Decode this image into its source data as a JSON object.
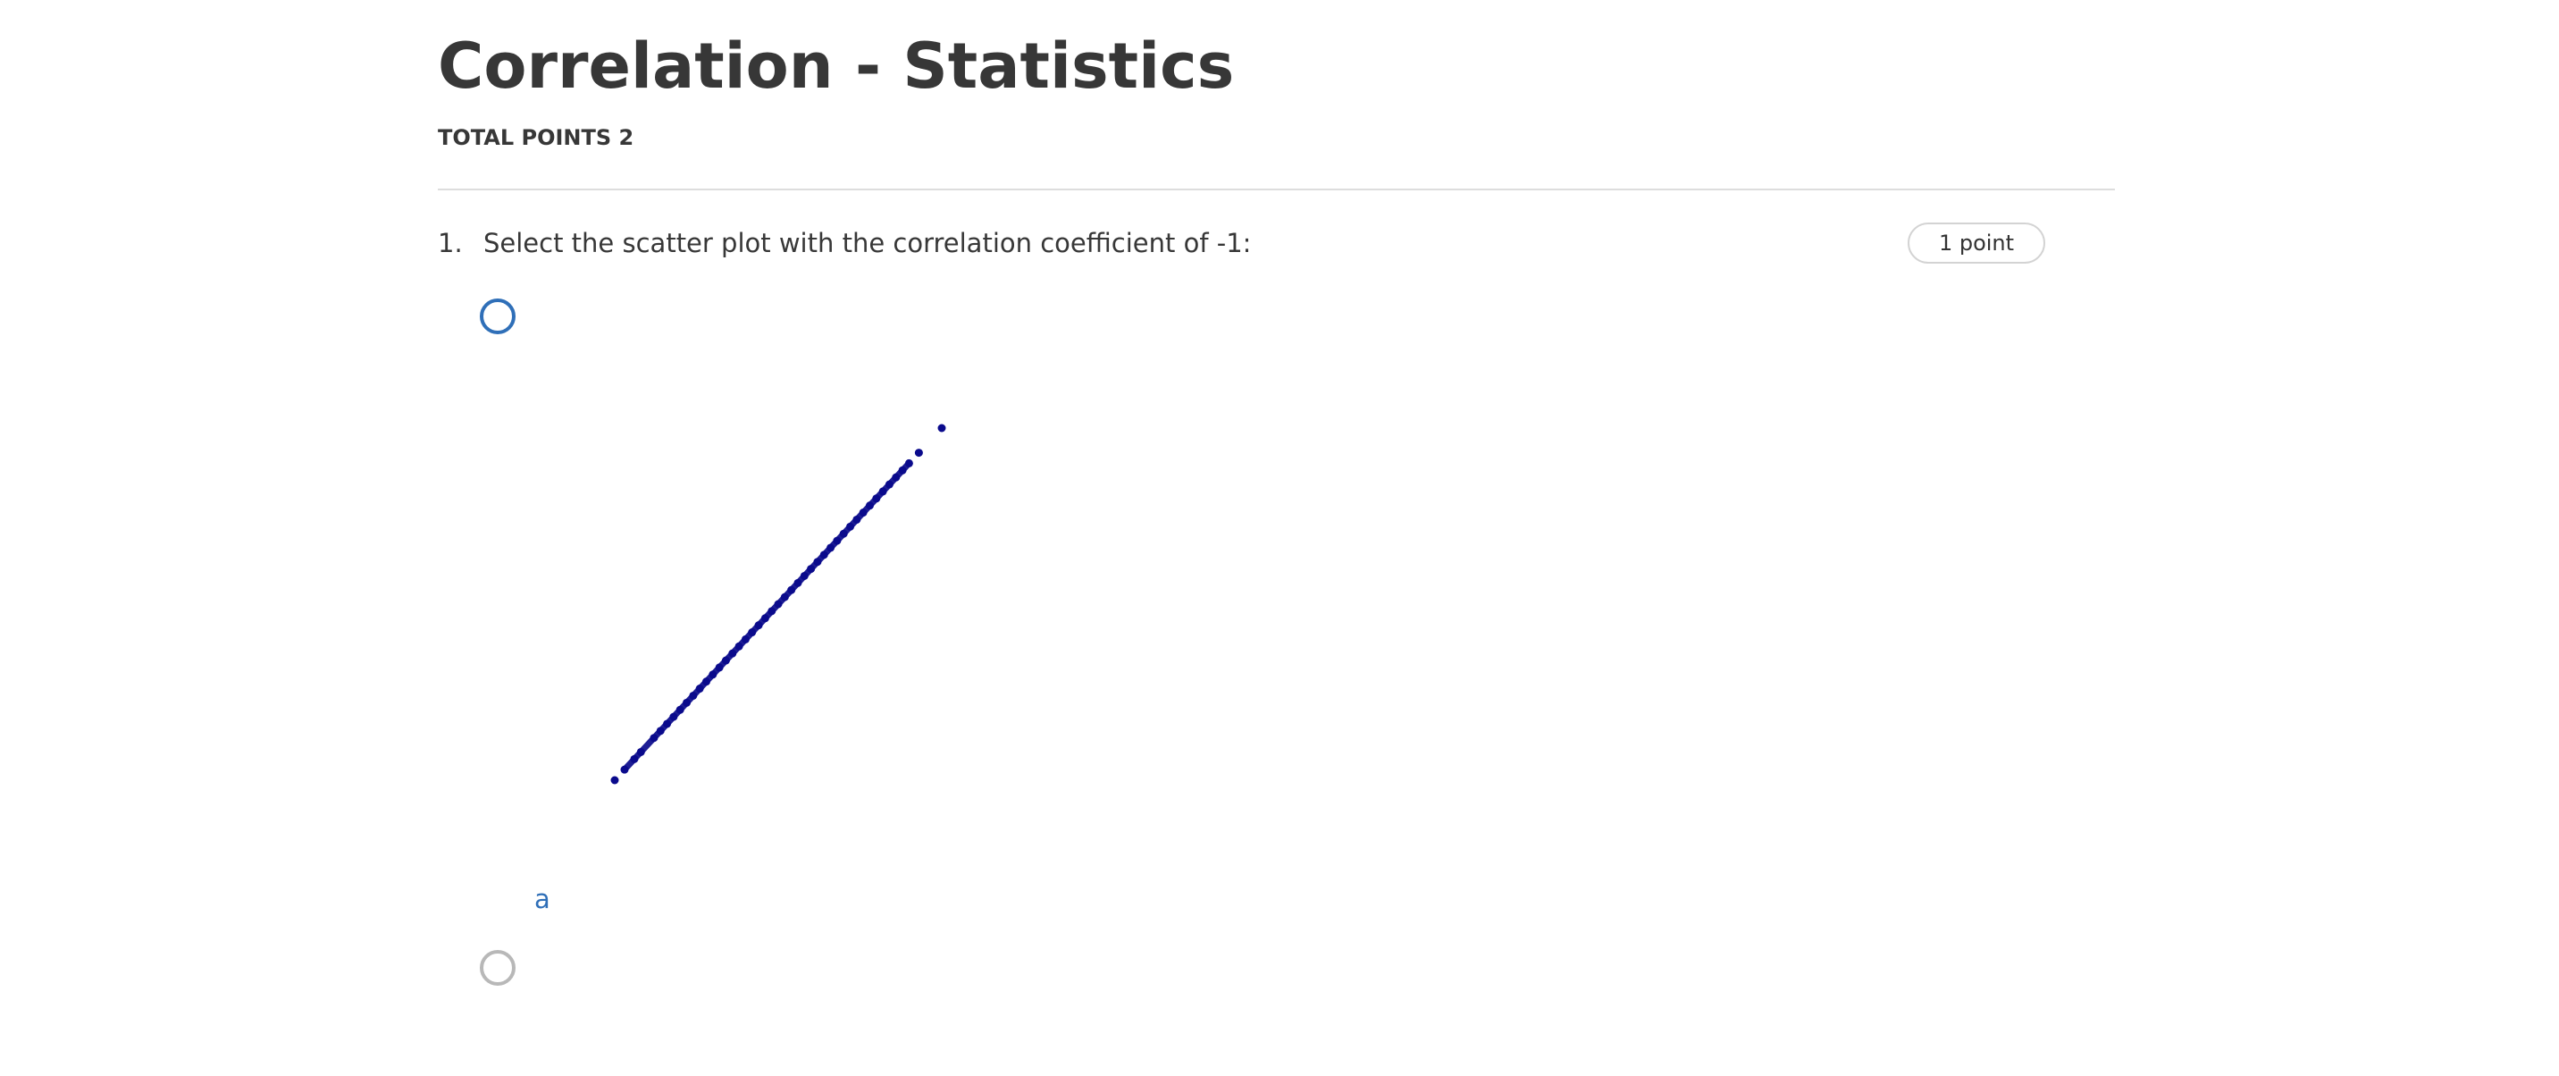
{
  "quiz": {
    "title": "Correlation - Statistics",
    "total_points": "TOTAL POINTS 2"
  },
  "question": {
    "number": "1.",
    "text": "Select the scatter plot with the correlation coefficient of -1:",
    "points": "1 point"
  },
  "options": [
    {
      "label": "a",
      "selected": false,
      "focused": true,
      "image": "scatter-plot"
    },
    {
      "label": "",
      "selected": false,
      "focused": false
    }
  ],
  "colors": {
    "heading": "#373737",
    "accent_blue": "#2f6fb8",
    "scatter_points": "#0a0a8c",
    "radio_inactive": "#b8b8b8",
    "divider": "#dddddd"
  },
  "chart_data": {
    "type": "scatter",
    "title": "",
    "xlabel": "",
    "ylabel": "",
    "grid": false,
    "x": [
      0.0,
      0.03,
      0.06,
      0.08,
      0.12,
      0.14,
      0.16,
      0.18,
      0.2,
      0.22,
      0.24,
      0.26,
      0.28,
      0.3,
      0.32,
      0.34,
      0.36,
      0.38,
      0.4,
      0.42,
      0.44,
      0.46,
      0.48,
      0.5,
      0.52,
      0.54,
      0.56,
      0.58,
      0.6,
      0.62,
      0.64,
      0.66,
      0.68,
      0.7,
      0.72,
      0.74,
      0.76,
      0.78,
      0.8,
      0.82,
      0.84,
      0.86,
      0.88,
      0.9,
      0.93,
      1.0
    ],
    "y": [
      0.0,
      0.03,
      0.06,
      0.08,
      0.12,
      0.14,
      0.16,
      0.18,
      0.2,
      0.22,
      0.24,
      0.26,
      0.28,
      0.3,
      0.32,
      0.34,
      0.36,
      0.38,
      0.4,
      0.42,
      0.44,
      0.46,
      0.48,
      0.5,
      0.52,
      0.54,
      0.56,
      0.58,
      0.6,
      0.62,
      0.64,
      0.66,
      0.68,
      0.7,
      0.72,
      0.74,
      0.76,
      0.78,
      0.8,
      0.82,
      0.84,
      0.86,
      0.88,
      0.9,
      0.93,
      1.0
    ],
    "xlim": [
      0,
      1
    ],
    "ylim": [
      0,
      1
    ]
  }
}
